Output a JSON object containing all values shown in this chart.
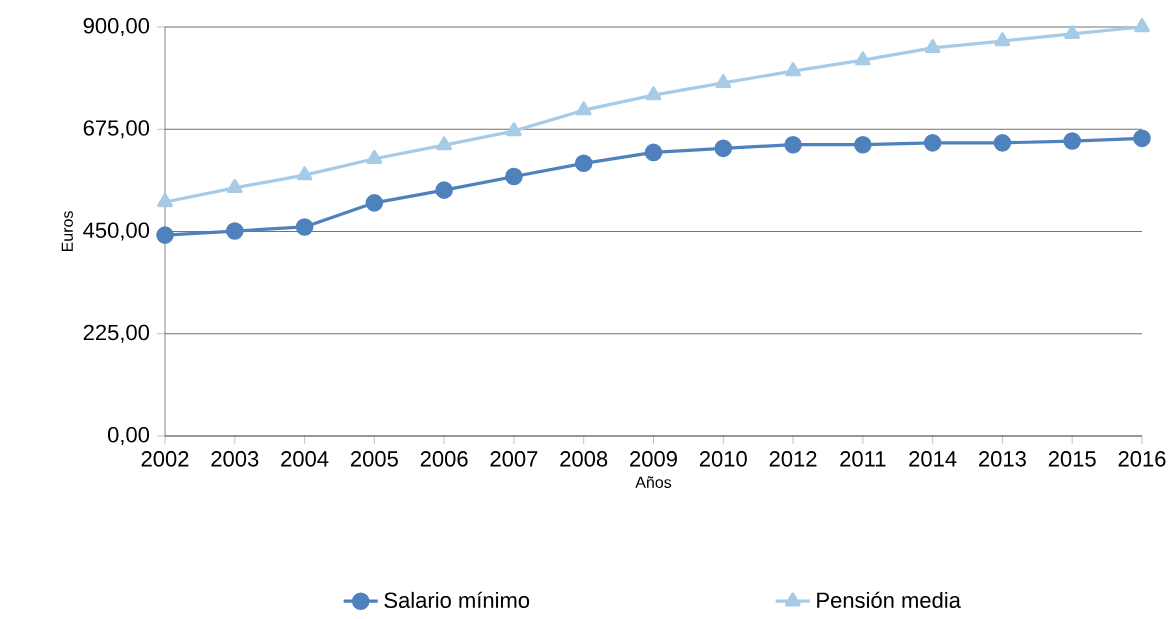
{
  "chart_data": {
    "type": "line",
    "xlabel": "Años",
    "ylabel": "Euros",
    "categories": [
      "2002",
      "2003",
      "2004",
      "2005",
      "2006",
      "2007",
      "2008",
      "2009",
      "2010",
      "2012",
      "2011",
      "2014",
      "2013",
      "2015",
      "2016"
    ],
    "series": [
      {
        "name": "Salario mínimo",
        "color": "#4f81bd",
        "marker": "circle",
        "values": [
          442,
          451,
          460,
          513,
          541,
          571,
          600,
          624,
          633,
          641,
          641,
          645,
          645,
          649,
          655
        ]
      },
      {
        "name": "Pensión media",
        "color": "#a6cbe6",
        "marker": "triangle",
        "values": [
          515,
          546,
          574,
          610,
          640,
          671,
          717,
          750,
          777,
          803,
          827,
          854,
          869,
          885,
          900
        ]
      }
    ],
    "ylim": [
      0,
      900
    ],
    "yticks": [
      {
        "value": 0,
        "label": "0,00"
      },
      {
        "value": 225,
        "label": "225,00"
      },
      {
        "value": 450,
        "label": "450,00"
      },
      {
        "value": 675,
        "label": "675,00"
      },
      {
        "value": 900,
        "label": "900,00"
      }
    ],
    "grid": "y",
    "legend": "bottom",
    "line_style": "solid"
  }
}
